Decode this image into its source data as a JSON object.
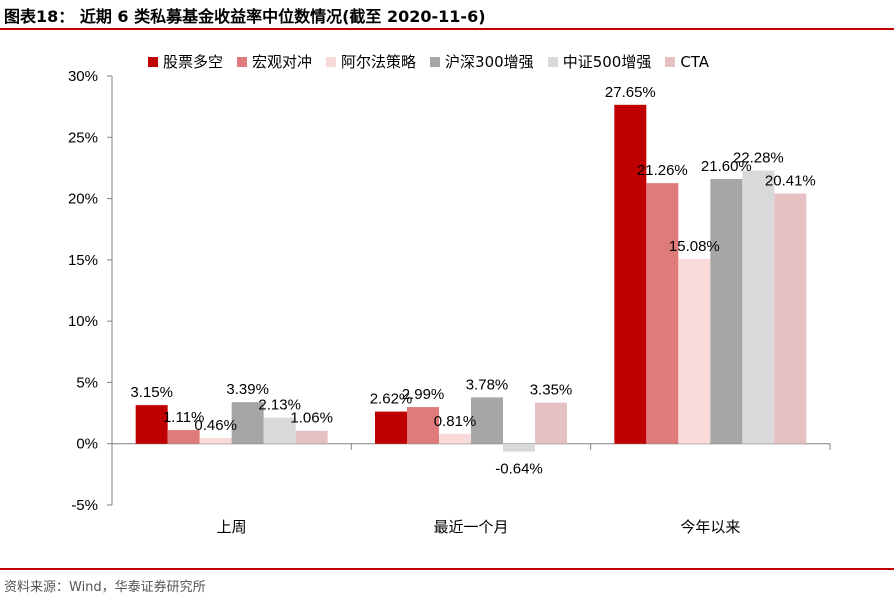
{
  "header": {
    "title": "图表18：  近期 6 类私募基金收益率中位数情况(截至 2020-11-6)"
  },
  "footer": {
    "source": "资料来源：Wind，华泰证券研究所"
  },
  "chart_data": {
    "type": "bar",
    "categories": [
      "上周",
      "最近一个月",
      "今年以来"
    ],
    "series": [
      {
        "name": "股票多空",
        "color": "#c00000",
        "values": [
          3.15,
          2.62,
          27.65
        ],
        "labels": [
          "3.15%",
          "2.62%",
          "27.65%"
        ]
      },
      {
        "name": "宏观对冲",
        "color": "#e07b7b",
        "values": [
          1.11,
          2.99,
          21.26
        ],
        "labels": [
          "1.11%",
          "2.99%",
          "21.26%"
        ]
      },
      {
        "name": "阿尔法策略",
        "color": "#f8dada",
        "values": [
          0.46,
          0.81,
          15.08
        ],
        "labels": [
          "0.46%",
          "0.81%",
          "15.08%"
        ]
      },
      {
        "name": "沪深300增强",
        "color": "#a6a6a6",
        "values": [
          3.39,
          3.78,
          21.6
        ],
        "labels": [
          "3.39%",
          "3.78%",
          "21.60%"
        ]
      },
      {
        "name": "中证500增强",
        "color": "#d9d9d9",
        "values": [
          2.13,
          -0.64,
          22.28
        ],
        "labels": [
          "2.13%",
          "-0.64%",
          "22.28%"
        ]
      },
      {
        "name": "CTA",
        "color": "#e6c1c4",
        "values": [
          1.06,
          3.35,
          20.41
        ],
        "labels": [
          "1.06%",
          "3.35%",
          "20.41%"
        ]
      }
    ],
    "yticks": [
      "30%",
      "25%",
      "20%",
      "15%",
      "10%",
      "5%",
      "0%",
      "-5%"
    ],
    "ylim": [
      -5,
      30
    ],
    "ytick_values": [
      30,
      25,
      20,
      15,
      10,
      5,
      0,
      -5
    ],
    "legend_position": "top",
    "grid": false
  }
}
